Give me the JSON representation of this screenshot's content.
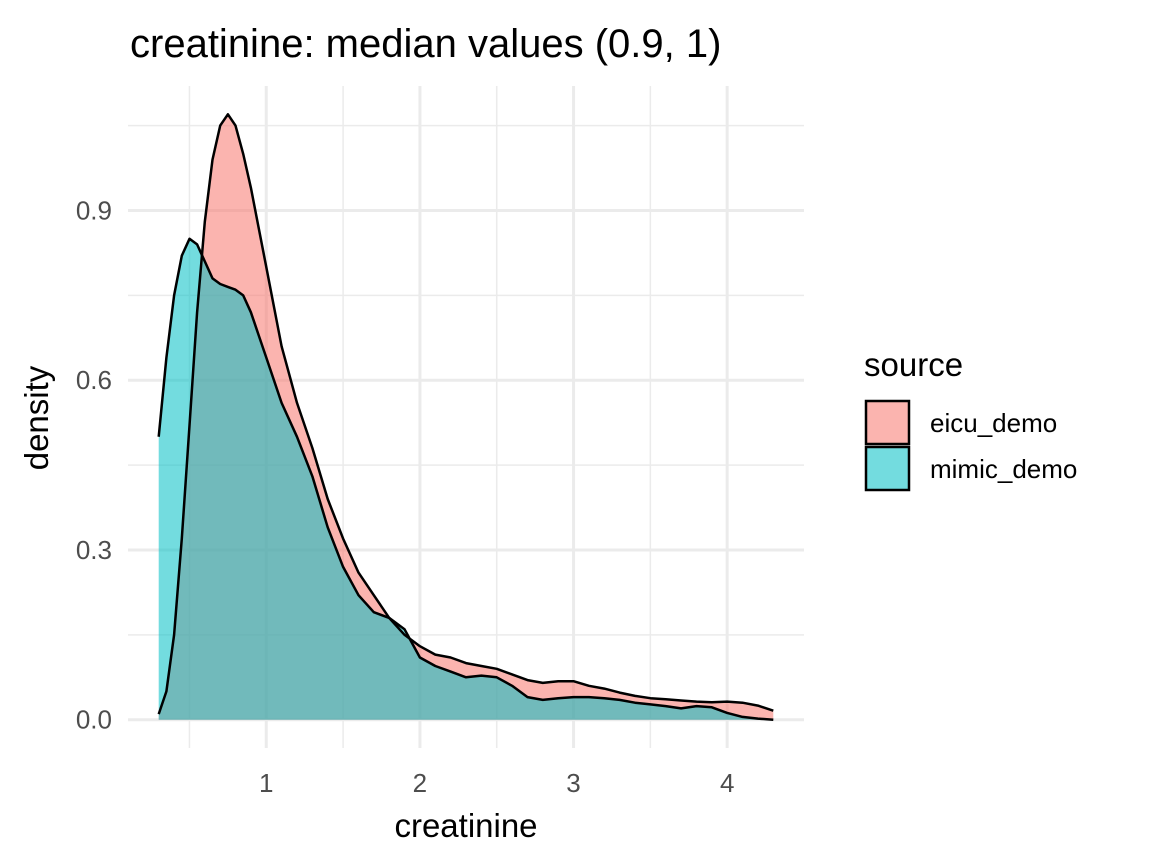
{
  "chart_data": {
    "type": "area",
    "subtype": "density",
    "title": "creatinine: median values (0.9, 1)",
    "xlabel": "creatinine",
    "ylabel": "density",
    "xlim": [
      0.1,
      4.5
    ],
    "ylim": [
      -0.05,
      1.12
    ],
    "x_ticks": [
      1,
      2,
      3,
      4
    ],
    "x_tick_labels": [
      "1",
      "2",
      "3",
      "4"
    ],
    "y_ticks": [
      0.0,
      0.3,
      0.6,
      0.9
    ],
    "y_tick_labels": [
      "0.0",
      "0.3",
      "0.6",
      "0.9"
    ],
    "x_minor_ticks": [
      0.5,
      1.5,
      2.5,
      3.5
    ],
    "y_minor_ticks": [
      0.15,
      0.45,
      0.75,
      1.05
    ],
    "grid": true,
    "legend": {
      "title": "source",
      "position": "right"
    },
    "series": [
      {
        "name": "eicu_demo",
        "color": "#F8766D",
        "points": [
          [
            0.3,
            0.01
          ],
          [
            0.35,
            0.05
          ],
          [
            0.4,
            0.15
          ],
          [
            0.45,
            0.32
          ],
          [
            0.5,
            0.52
          ],
          [
            0.55,
            0.72
          ],
          [
            0.6,
            0.88
          ],
          [
            0.65,
            0.99
          ],
          [
            0.7,
            1.05
          ],
          [
            0.75,
            1.07
          ],
          [
            0.8,
            1.05
          ],
          [
            0.85,
            1.0
          ],
          [
            0.9,
            0.94
          ],
          [
            0.95,
            0.87
          ],
          [
            1.0,
            0.8
          ],
          [
            1.1,
            0.66
          ],
          [
            1.2,
            0.56
          ],
          [
            1.3,
            0.48
          ],
          [
            1.4,
            0.39
          ],
          [
            1.5,
            0.32
          ],
          [
            1.6,
            0.26
          ],
          [
            1.7,
            0.22
          ],
          [
            1.8,
            0.18
          ],
          [
            1.9,
            0.15
          ],
          [
            2.0,
            0.13
          ],
          [
            2.1,
            0.115
          ],
          [
            2.2,
            0.11
          ],
          [
            2.3,
            0.1
          ],
          [
            2.4,
            0.095
          ],
          [
            2.5,
            0.09
          ],
          [
            2.6,
            0.08
          ],
          [
            2.7,
            0.07
          ],
          [
            2.8,
            0.065
          ],
          [
            2.9,
            0.068
          ],
          [
            3.0,
            0.068
          ],
          [
            3.1,
            0.06
          ],
          [
            3.2,
            0.055
          ],
          [
            3.3,
            0.048
          ],
          [
            3.4,
            0.042
          ],
          [
            3.5,
            0.038
          ],
          [
            3.6,
            0.036
          ],
          [
            3.7,
            0.034
          ],
          [
            3.8,
            0.032
          ],
          [
            3.9,
            0.031
          ],
          [
            4.0,
            0.032
          ],
          [
            4.1,
            0.03
          ],
          [
            4.2,
            0.025
          ],
          [
            4.3,
            0.016
          ]
        ]
      },
      {
        "name": "mimic_demo",
        "color": "#00BFC4",
        "points": [
          [
            0.3,
            0.5
          ],
          [
            0.35,
            0.64
          ],
          [
            0.4,
            0.75
          ],
          [
            0.45,
            0.82
          ],
          [
            0.5,
            0.85
          ],
          [
            0.55,
            0.84
          ],
          [
            0.6,
            0.81
          ],
          [
            0.65,
            0.78
          ],
          [
            0.7,
            0.77
          ],
          [
            0.75,
            0.765
          ],
          [
            0.8,
            0.76
          ],
          [
            0.85,
            0.75
          ],
          [
            0.9,
            0.72
          ],
          [
            0.95,
            0.68
          ],
          [
            1.0,
            0.64
          ],
          [
            1.1,
            0.56
          ],
          [
            1.2,
            0.5
          ],
          [
            1.3,
            0.43
          ],
          [
            1.4,
            0.34
          ],
          [
            1.5,
            0.27
          ],
          [
            1.6,
            0.22
          ],
          [
            1.7,
            0.19
          ],
          [
            1.8,
            0.18
          ],
          [
            1.9,
            0.16
          ],
          [
            2.0,
            0.11
          ],
          [
            2.1,
            0.095
          ],
          [
            2.2,
            0.085
          ],
          [
            2.3,
            0.075
          ],
          [
            2.4,
            0.078
          ],
          [
            2.5,
            0.075
          ],
          [
            2.6,
            0.06
          ],
          [
            2.7,
            0.04
          ],
          [
            2.8,
            0.035
          ],
          [
            2.9,
            0.038
          ],
          [
            3.0,
            0.04
          ],
          [
            3.1,
            0.04
          ],
          [
            3.2,
            0.038
          ],
          [
            3.3,
            0.035
          ],
          [
            3.4,
            0.03
          ],
          [
            3.5,
            0.027
          ],
          [
            3.6,
            0.024
          ],
          [
            3.7,
            0.02
          ],
          [
            3.8,
            0.024
          ],
          [
            3.9,
            0.022
          ],
          [
            4.0,
            0.012
          ],
          [
            4.1,
            0.005
          ],
          [
            4.2,
            0.002
          ],
          [
            4.3,
            0.0
          ]
        ]
      }
    ]
  }
}
